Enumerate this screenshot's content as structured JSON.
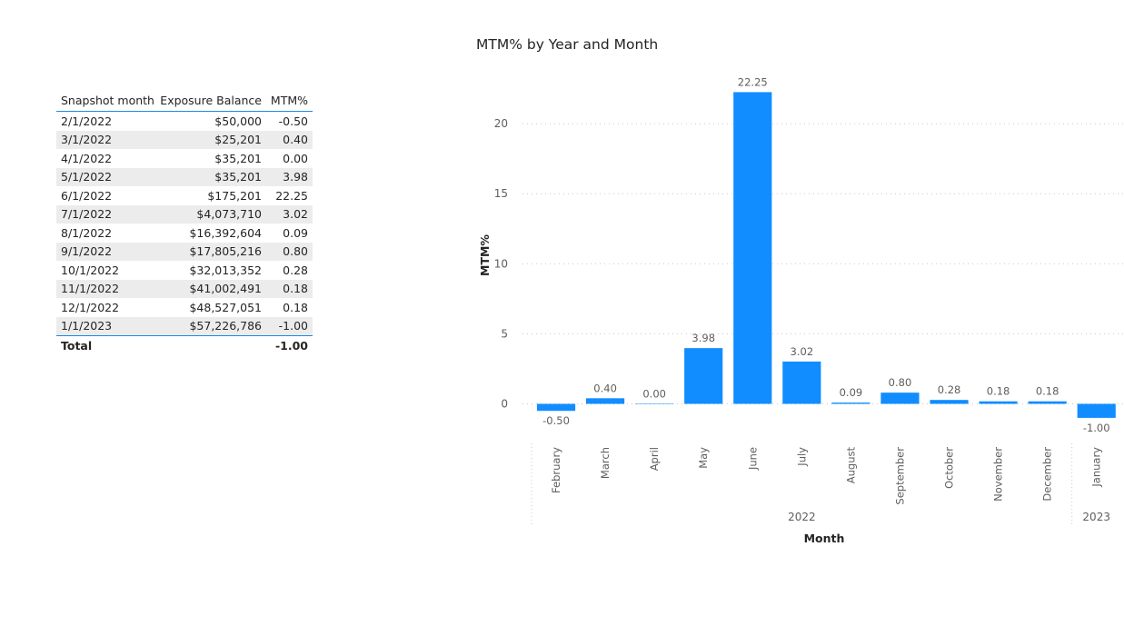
{
  "table": {
    "headers": [
      "Snapshot month",
      "Exposure Balance",
      "MTM%"
    ],
    "rows": [
      [
        "2/1/2022",
        "$50,000",
        "-0.50"
      ],
      [
        "3/1/2022",
        "$25,201",
        "0.40"
      ],
      [
        "4/1/2022",
        "$35,201",
        "0.00"
      ],
      [
        "5/1/2022",
        "$35,201",
        "3.98"
      ],
      [
        "6/1/2022",
        "$175,201",
        "22.25"
      ],
      [
        "7/1/2022",
        "$4,073,710",
        "3.02"
      ],
      [
        "8/1/2022",
        "$16,392,604",
        "0.09"
      ],
      [
        "9/1/2022",
        "$17,805,216",
        "0.80"
      ],
      [
        "10/1/2022",
        "$32,013,352",
        "0.28"
      ],
      [
        "11/1/2022",
        "$41,002,491",
        "0.18"
      ],
      [
        "12/1/2022",
        "$48,527,051",
        "0.18"
      ],
      [
        "1/1/2023",
        "$57,226,786",
        "-1.00"
      ]
    ],
    "total": {
      "label": "Total",
      "exposure": "",
      "mtm": "-1.00"
    }
  },
  "chart_data": {
    "type": "bar",
    "title": "MTM% by Year and Month",
    "xlabel": "Month",
    "ylabel": "MTM%",
    "categories": [
      "February",
      "March",
      "April",
      "May",
      "June",
      "July",
      "August",
      "September",
      "October",
      "November",
      "December",
      "January"
    ],
    "groups": [
      {
        "label": "2022",
        "count": 11
      },
      {
        "label": "2023",
        "count": 1
      }
    ],
    "values": [
      -0.5,
      0.4,
      0.0,
      3.98,
      22.25,
      3.02,
      0.09,
      0.8,
      0.28,
      0.18,
      0.18,
      -1.0
    ],
    "data_labels": [
      "-0.50",
      "0.40",
      "0.00",
      "3.98",
      "22.25",
      "3.02",
      "0.09",
      "0.80",
      "0.28",
      "0.18",
      "0.18",
      "-1.00"
    ],
    "yticks": [
      0,
      5,
      10,
      15,
      20
    ],
    "ylim": [
      -2.5,
      22.25
    ],
    "grid": true,
    "bar_color": "#118dff"
  }
}
